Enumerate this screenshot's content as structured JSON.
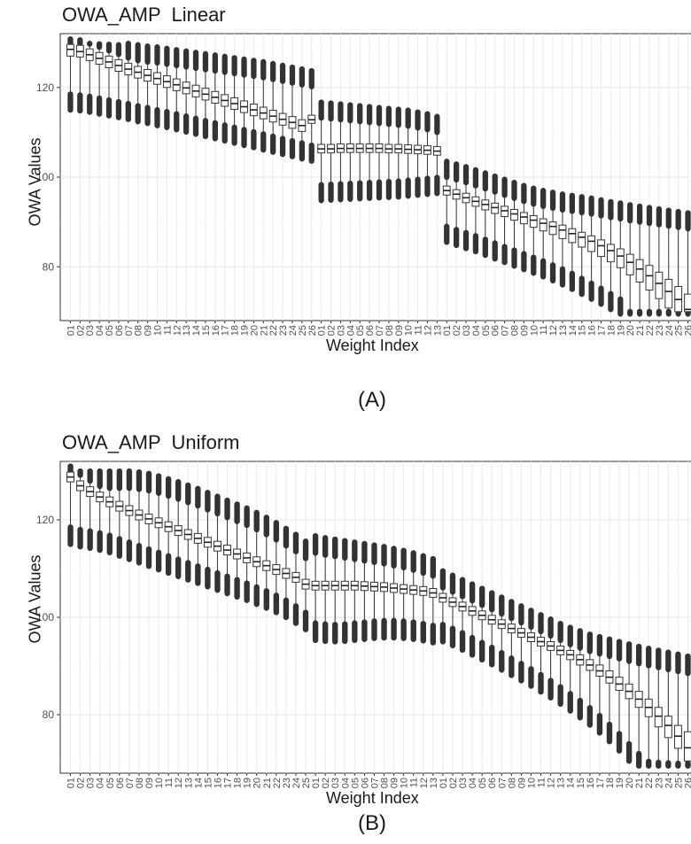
{
  "chart_data": [
    {
      "type": "box",
      "title": "OWA_AMP  Linear",
      "xlabel": "Weight Index",
      "ylabel": "OWA Values",
      "caption": "(A)",
      "yticks": [
        80,
        100,
        120
      ],
      "ylim": [
        68,
        132
      ],
      "grid": true,
      "groups": [
        {
          "categories": [
            "01",
            "02",
            "03",
            "04",
            "05",
            "06",
            "07",
            "08",
            "09",
            "10",
            "11",
            "12",
            "13",
            "14",
            "15",
            "16",
            "17",
            "18",
            "19",
            "20",
            "21",
            "22",
            "23",
            "24",
            "25",
            "26"
          ],
          "median": [
            128.5,
            128,
            127.3,
            126.5,
            125.7,
            124.9,
            124.1,
            123.4,
            122.7,
            122,
            121.3,
            120.6,
            119.9,
            119.2,
            118.5,
            117.8,
            117.1,
            116.4,
            115.7,
            115,
            114.3,
            113.6,
            112.9,
            112.2,
            111.5,
            112.8
          ],
          "q1": [
            127,
            126.8,
            126,
            125.2,
            124.4,
            123.6,
            122.8,
            122.1,
            121.4,
            120.7,
            120,
            119.3,
            118.6,
            117.9,
            117.2,
            116.5,
            115.8,
            115.1,
            114.4,
            113.7,
            113,
            112.3,
            111.6,
            110.9,
            110.2,
            112
          ],
          "q3": [
            129.6,
            129.4,
            128.6,
            127.8,
            127,
            126.2,
            125.4,
            124.7,
            124,
            123.3,
            122.6,
            121.9,
            121.2,
            120.5,
            119.8,
            119.1,
            118.4,
            117.7,
            117,
            116.3,
            115.6,
            114.9,
            114.2,
            113.5,
            112.8,
            113.8
          ],
          "whisker_low": [
            118.5,
            118.3,
            118,
            117.6,
            117.2,
            116.8,
            116.4,
            115.9,
            115.5,
            115,
            114.6,
            114.1,
            113.6,
            113.1,
            112.6,
            112.1,
            111.6,
            111.1,
            110.6,
            110.1,
            109.6,
            109.1,
            108.6,
            108.1,
            107.6,
            107.1
          ],
          "whisker_high": [
            129.9,
            129.8,
            129.7,
            129.7,
            129.6,
            129.5,
            129.8,
            129.5,
            129.2,
            129,
            128.7,
            128.4,
            128.1,
            127.8,
            127.5,
            127.2,
            126.9,
            126.6,
            126.3,
            126,
            125.7,
            125.3,
            124.9,
            124.5,
            124.1,
            123.7
          ]
        },
        {
          "categories": [
            "01",
            "02",
            "03",
            "04",
            "05",
            "06",
            "07",
            "08",
            "09",
            "10",
            "11",
            "12",
            "13"
          ],
          "median": [
            106.3,
            106.3,
            106.4,
            106.4,
            106.4,
            106.4,
            106.4,
            106.3,
            106.3,
            106.2,
            106.1,
            106,
            105.8
          ],
          "q1": [
            105.4,
            105.4,
            105.5,
            105.5,
            105.5,
            105.5,
            105.5,
            105.4,
            105.4,
            105.3,
            105.2,
            105.1,
            104.9
          ],
          "q3": [
            107.3,
            107.3,
            107.4,
            107.4,
            107.4,
            107.4,
            107.4,
            107.3,
            107.3,
            107.2,
            107.1,
            107,
            106.8
          ],
          "whisker_low": [
            98.3,
            98.4,
            98.5,
            98.6,
            98.7,
            98.8,
            98.9,
            99,
            99.1,
            99.3,
            99.5,
            99.7,
            99.9
          ],
          "whisker_high": [
            116.7,
            116.5,
            116.3,
            116.1,
            115.9,
            115.7,
            115.5,
            115.3,
            115.1,
            114.9,
            114.5,
            114.1,
            113.5
          ]
        },
        {
          "categories": [
            "01",
            "02",
            "03",
            "04",
            "05",
            "06",
            "07",
            "08",
            "09",
            "10",
            "11",
            "12",
            "13",
            "14",
            "15",
            "16",
            "17",
            "18",
            "19",
            "20",
            "21",
            "22",
            "23",
            "24",
            "25",
            "26"
          ],
          "median": [
            97,
            96.2,
            95.4,
            94.6,
            93.9,
            93.2,
            92.5,
            91.8,
            91.1,
            90.4,
            89.7,
            89,
            88.2,
            87.4,
            86.6,
            85.7,
            84.7,
            83.6,
            82.4,
            81,
            79.5,
            78,
            76.3,
            74.5,
            72.7,
            70.5
          ],
          "q1": [
            96,
            95.1,
            94.3,
            93.5,
            92.7,
            91.9,
            91.2,
            90.4,
            89.6,
            88.8,
            88,
            87.2,
            86.3,
            85.4,
            84.4,
            83.4,
            82.3,
            81.1,
            79.8,
            78.2,
            76.6,
            74.8,
            72.9,
            70.8,
            70,
            70
          ],
          "q3": [
            98,
            97.2,
            96.4,
            95.6,
            94.9,
            94.2,
            93.5,
            92.8,
            92.1,
            91.4,
            90.7,
            90,
            89.3,
            88.5,
            87.7,
            86.9,
            86,
            85,
            84,
            82.8,
            81.6,
            80.3,
            78.8,
            77.2,
            75.6,
            73.9
          ],
          "whisker_low": [
            89,
            88.3,
            87.6,
            86.9,
            86.1,
            85.3,
            84.5,
            83.7,
            82.9,
            82.1,
            81.3,
            80.4,
            79.5,
            78.5,
            77.4,
            76.3,
            75.2,
            74,
            72.8,
            70,
            70,
            70,
            70,
            70,
            70,
            70
          ],
          "whisker_high": [
            103.5,
            102.9,
            102.3,
            101.6,
            100.9,
            100.2,
            99.5,
            98.8,
            98.1,
            97.5,
            97,
            96.6,
            96.2,
            95.9,
            95.6,
            95.3,
            94.9,
            94.5,
            94.2,
            93.8,
            93.5,
            93.2,
            92.9,
            92.6,
            92.3,
            92
          ]
        }
      ]
    },
    {
      "type": "box",
      "title": "OWA_AMP  Uniform",
      "xlabel": "Weight Index",
      "ylabel": "OWA Values",
      "caption": "(B)",
      "yticks": [
        80,
        100,
        120
      ],
      "ylim": [
        68,
        132
      ],
      "grid": true,
      "groups": [
        {
          "categories": [
            "01",
            "02",
            "03",
            "04",
            "05",
            "06",
            "07",
            "08",
            "09",
            "10",
            "11",
            "12",
            "13",
            "14",
            "15",
            "16",
            "17",
            "18",
            "19",
            "20",
            "21",
            "22",
            "23",
            "24",
            "25"
          ],
          "median": [
            128.8,
            127,
            125.8,
            124.7,
            123.7,
            122.8,
            121.9,
            121,
            120.2,
            119.4,
            118.6,
            117.8,
            117,
            116.2,
            115.4,
            114.6,
            113.8,
            113,
            112.2,
            111.4,
            110.6,
            109.8,
            109,
            108.2,
            106.8
          ],
          "q1": [
            127.8,
            126,
            124.8,
            123.7,
            122.7,
            121.8,
            120.9,
            120,
            119.2,
            118.4,
            117.6,
            116.8,
            116,
            115.2,
            114.4,
            113.6,
            112.8,
            112,
            111.2,
            110.4,
            109.6,
            108.8,
            108,
            107.2,
            105.8
          ],
          "q3": [
            129.8,
            128,
            126.8,
            125.7,
            124.7,
            123.8,
            122.9,
            122,
            121.2,
            120.4,
            119.6,
            118.8,
            118,
            117.2,
            116.4,
            115.6,
            114.8,
            114,
            113.2,
            112.4,
            111.6,
            110.8,
            110,
            109.2,
            107.8
          ],
          "whisker_low": [
            118.5,
            118,
            117.7,
            117.3,
            116.8,
            116.1,
            115.4,
            114.7,
            114,
            113.3,
            112.6,
            111.9,
            111.2,
            110.5,
            109.8,
            109.1,
            108.4,
            107.7,
            107,
            106.2,
            105.4,
            104.5,
            103.5,
            102.3,
            101
          ],
          "whisker_high": [
            130,
            130,
            130,
            130,
            130,
            130,
            130,
            129.8,
            129.5,
            129,
            128.4,
            127.8,
            127.1,
            126.4,
            125.6,
            124.8,
            124,
            123.2,
            122.4,
            121.5,
            120.5,
            119.4,
            118.2,
            117,
            115.6
          ]
        },
        {
          "categories": [
            "01",
            "02",
            "03",
            "04",
            "05",
            "06",
            "07",
            "08",
            "09",
            "10",
            "11",
            "12",
            "13"
          ],
          "median": [
            106.5,
            106.5,
            106.5,
            106.5,
            106.5,
            106.4,
            106.3,
            106.2,
            106,
            105.8,
            105.6,
            105.4,
            105
          ],
          "q1": [
            105.6,
            105.6,
            105.6,
            105.6,
            105.6,
            105.5,
            105.4,
            105.3,
            105.1,
            104.9,
            104.7,
            104.5,
            104.1
          ],
          "q3": [
            107.4,
            107.4,
            107.4,
            107.4,
            107.4,
            107.3,
            107.2,
            107.1,
            106.9,
            106.7,
            106.5,
            106.3,
            105.9
          ],
          "whisker_low": [
            98.8,
            98.6,
            98.5,
            98.6,
            98.8,
            99,
            99.2,
            99.3,
            99.3,
            99.2,
            99,
            98.7,
            98.3
          ],
          "whisker_high": [
            116.7,
            116.3,
            116,
            115.7,
            115.4,
            115.1,
            114.8,
            114.5,
            114.1,
            113.7,
            113.2,
            112.6,
            112
          ]
        },
        {
          "categories": [
            "01",
            "02",
            "03",
            "04",
            "05",
            "06",
            "07",
            "08",
            "09",
            "10",
            "11",
            "12",
            "13",
            "14",
            "15",
            "16",
            "17",
            "18",
            "19",
            "20",
            "21",
            "22",
            "23",
            "24",
            "25",
            "26"
          ],
          "median": [
            104,
            103.1,
            102.2,
            101.3,
            100.4,
            99.5,
            98.6,
            97.7,
            96.8,
            95.9,
            95,
            94.1,
            93.2,
            92.3,
            91.3,
            90.2,
            89,
            87.7,
            86.3,
            84.8,
            83.2,
            81.5,
            79.7,
            77.8,
            75.6,
            73.2
          ],
          "q1": [
            103.1,
            102.2,
            101.3,
            100.4,
            99.5,
            98.6,
            97.7,
            96.8,
            95.9,
            95,
            94.1,
            93.2,
            92.3,
            91.3,
            90.2,
            89.1,
            87.9,
            86.5,
            85,
            83.3,
            81.5,
            79.6,
            77.5,
            75.3,
            73.1,
            70.5
          ],
          "q3": [
            104.9,
            104,
            103.1,
            102.2,
            101.3,
            100.4,
            99.5,
            98.6,
            97.7,
            96.8,
            95.9,
            95,
            94.1,
            93.2,
            92.3,
            91.3,
            90.2,
            89,
            87.7,
            86.3,
            84.8,
            83.2,
            81.5,
            79.7,
            77.8,
            76.5
          ],
          "whisker_low": [
            98.5,
            97.7,
            96.8,
            95.8,
            94.8,
            93.8,
            92.7,
            91.6,
            90.5,
            89.4,
            88.2,
            87,
            85.7,
            84.3,
            82.9,
            81.4,
            79.8,
            78,
            76.1,
            74,
            72,
            70.4,
            70.2,
            70.1,
            70,
            70
          ],
          "whisker_high": [
            109.5,
            108.6,
            107.7,
            106.8,
            105.9,
            105,
            104.1,
            103.2,
            102.3,
            101.4,
            100.5,
            99.6,
            98.7,
            97.9,
            97.2,
            96.5,
            96,
            95.5,
            95,
            94.5,
            94,
            93.6,
            93.2,
            92.8,
            92.4,
            92
          ]
        }
      ]
    }
  ]
}
